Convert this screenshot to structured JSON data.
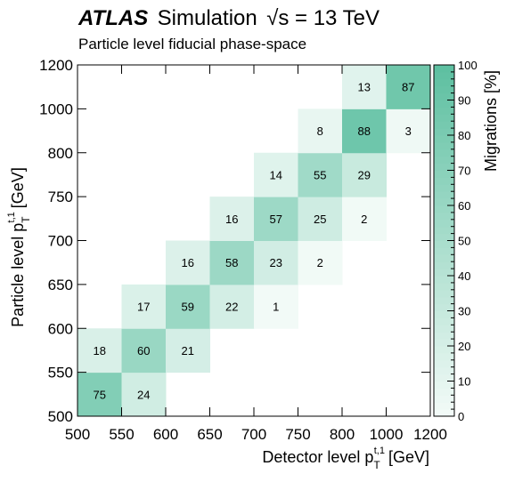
{
  "chart_data": {
    "type": "heatmap",
    "header": {
      "experiment": "ATLAS",
      "label": "Simulation",
      "energy": "√s = 13 TeV",
      "subtitle": "Particle level fiducial phase-space"
    },
    "xlabel": "Detector level p",
    "ylabel": "Particle level p",
    "axis_var_sub": "T",
    "axis_var_sup": "t,1",
    "axis_unit": "[GeV]",
    "bin_edges": [
      500,
      550,
      600,
      650,
      700,
      750,
      800,
      1000,
      1200
    ],
    "cells": [
      {
        "x": 0,
        "y": 0,
        "value": 75
      },
      {
        "x": 1,
        "y": 0,
        "value": 24
      },
      {
        "x": 0,
        "y": 1,
        "value": 18
      },
      {
        "x": 1,
        "y": 1,
        "value": 60
      },
      {
        "x": 2,
        "y": 1,
        "value": 21
      },
      {
        "x": 1,
        "y": 2,
        "value": 17
      },
      {
        "x": 2,
        "y": 2,
        "value": 59
      },
      {
        "x": 3,
        "y": 2,
        "value": 22
      },
      {
        "x": 4,
        "y": 2,
        "value": 1
      },
      {
        "x": 2,
        "y": 3,
        "value": 16
      },
      {
        "x": 3,
        "y": 3,
        "value": 58
      },
      {
        "x": 4,
        "y": 3,
        "value": 23
      },
      {
        "x": 5,
        "y": 3,
        "value": 2
      },
      {
        "x": 3,
        "y": 4,
        "value": 16
      },
      {
        "x": 4,
        "y": 4,
        "value": 57
      },
      {
        "x": 5,
        "y": 4,
        "value": 25
      },
      {
        "x": 6,
        "y": 4,
        "value": 2
      },
      {
        "x": 4,
        "y": 5,
        "value": 14
      },
      {
        "x": 5,
        "y": 5,
        "value": 55
      },
      {
        "x": 6,
        "y": 5,
        "value": 29
      },
      {
        "x": 5,
        "y": 6,
        "value": 8
      },
      {
        "x": 6,
        "y": 6,
        "value": 88
      },
      {
        "x": 7,
        "y": 6,
        "value": 3
      },
      {
        "x": 6,
        "y": 7,
        "value": 13
      },
      {
        "x": 7,
        "y": 7,
        "value": 87
      }
    ],
    "colorbar": {
      "label": "Migrations [%]",
      "range": [
        0,
        100
      ],
      "ticks": [
        0,
        10,
        20,
        30,
        40,
        50,
        60,
        70,
        80,
        90,
        100
      ]
    },
    "colors": {
      "max": "#5cbfa0",
      "min": "#f4fbf8"
    }
  }
}
